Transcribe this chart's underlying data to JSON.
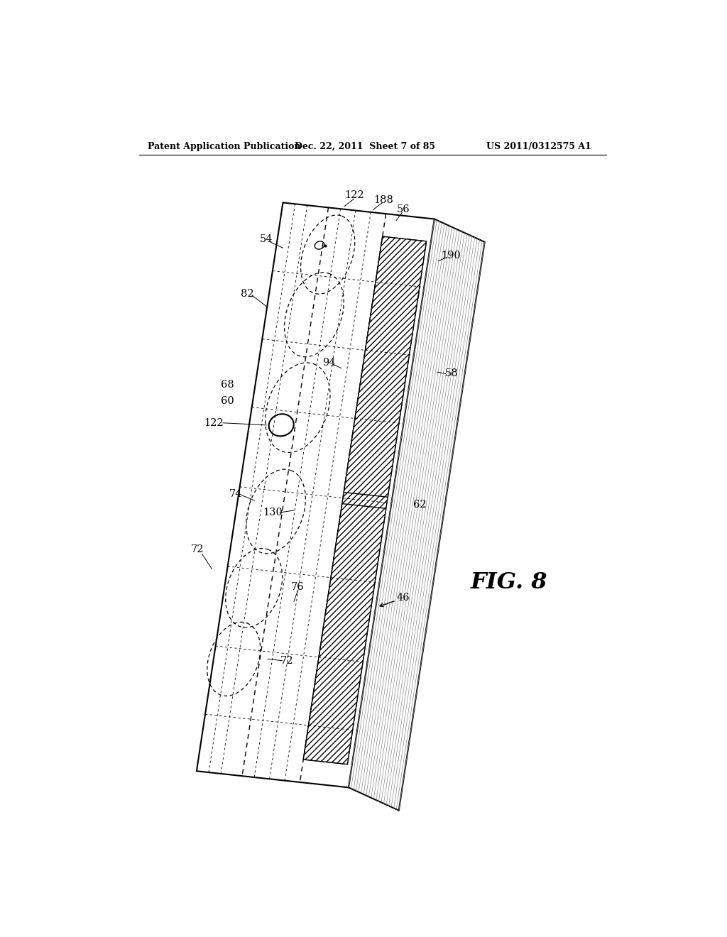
{
  "background_color": "#ffffff",
  "header_left": "Patent Application Publication",
  "header_mid": "Dec. 22, 2011  Sheet 7 of 85",
  "header_right": "US 2011/0312575 A1",
  "fig_label": "FIG. 8",
  "title_fontsize": 9,
  "label_fontsize": 10.5
}
